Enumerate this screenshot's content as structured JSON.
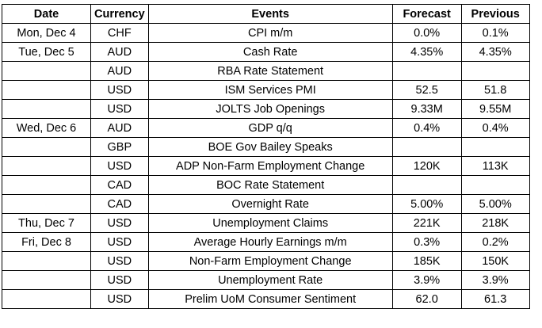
{
  "headers": [
    "Date",
    "Currency",
    "Events",
    "Forecast",
    "Previous"
  ],
  "rows": [
    [
      "Mon, Dec 4",
      "CHF",
      "CPI m/m",
      "0.0%",
      "0.1%"
    ],
    [
      "Tue, Dec 5",
      "AUD",
      "Cash Rate",
      "4.35%",
      "4.35%"
    ],
    [
      "",
      "AUD",
      "RBA Rate Statement",
      "",
      ""
    ],
    [
      "",
      "USD",
      "ISM Services PMI",
      "52.5",
      "51.8"
    ],
    [
      "",
      "USD",
      "JOLTS Job Openings",
      "9.33M",
      "9.55M"
    ],
    [
      "Wed, Dec 6",
      "AUD",
      "GDP q/q",
      "0.4%",
      "0.4%"
    ],
    [
      "",
      "GBP",
      "BOE Gov Bailey Speaks",
      "",
      ""
    ],
    [
      "",
      "USD",
      "ADP Non-Farm Employment Change",
      "120K",
      "113K"
    ],
    [
      "",
      "CAD",
      "BOC Rate Statement",
      "",
      ""
    ],
    [
      "",
      "CAD",
      "Overnight Rate",
      "5.00%",
      "5.00%"
    ],
    [
      "Thu, Dec 7",
      "USD",
      "Unemployment Claims",
      "221K",
      "218K"
    ],
    [
      "Fri, Dec 8",
      "USD",
      "Average Hourly Earnings m/m",
      "0.3%",
      "0.2%"
    ],
    [
      "",
      "USD",
      "Non-Farm Employment Change",
      "185K",
      "150K"
    ],
    [
      "",
      "USD",
      "Unemployment Rate",
      "3.9%",
      "3.9%"
    ],
    [
      "",
      "USD",
      "Prelim UoM Consumer Sentiment",
      "62.0",
      "61.3"
    ]
  ]
}
